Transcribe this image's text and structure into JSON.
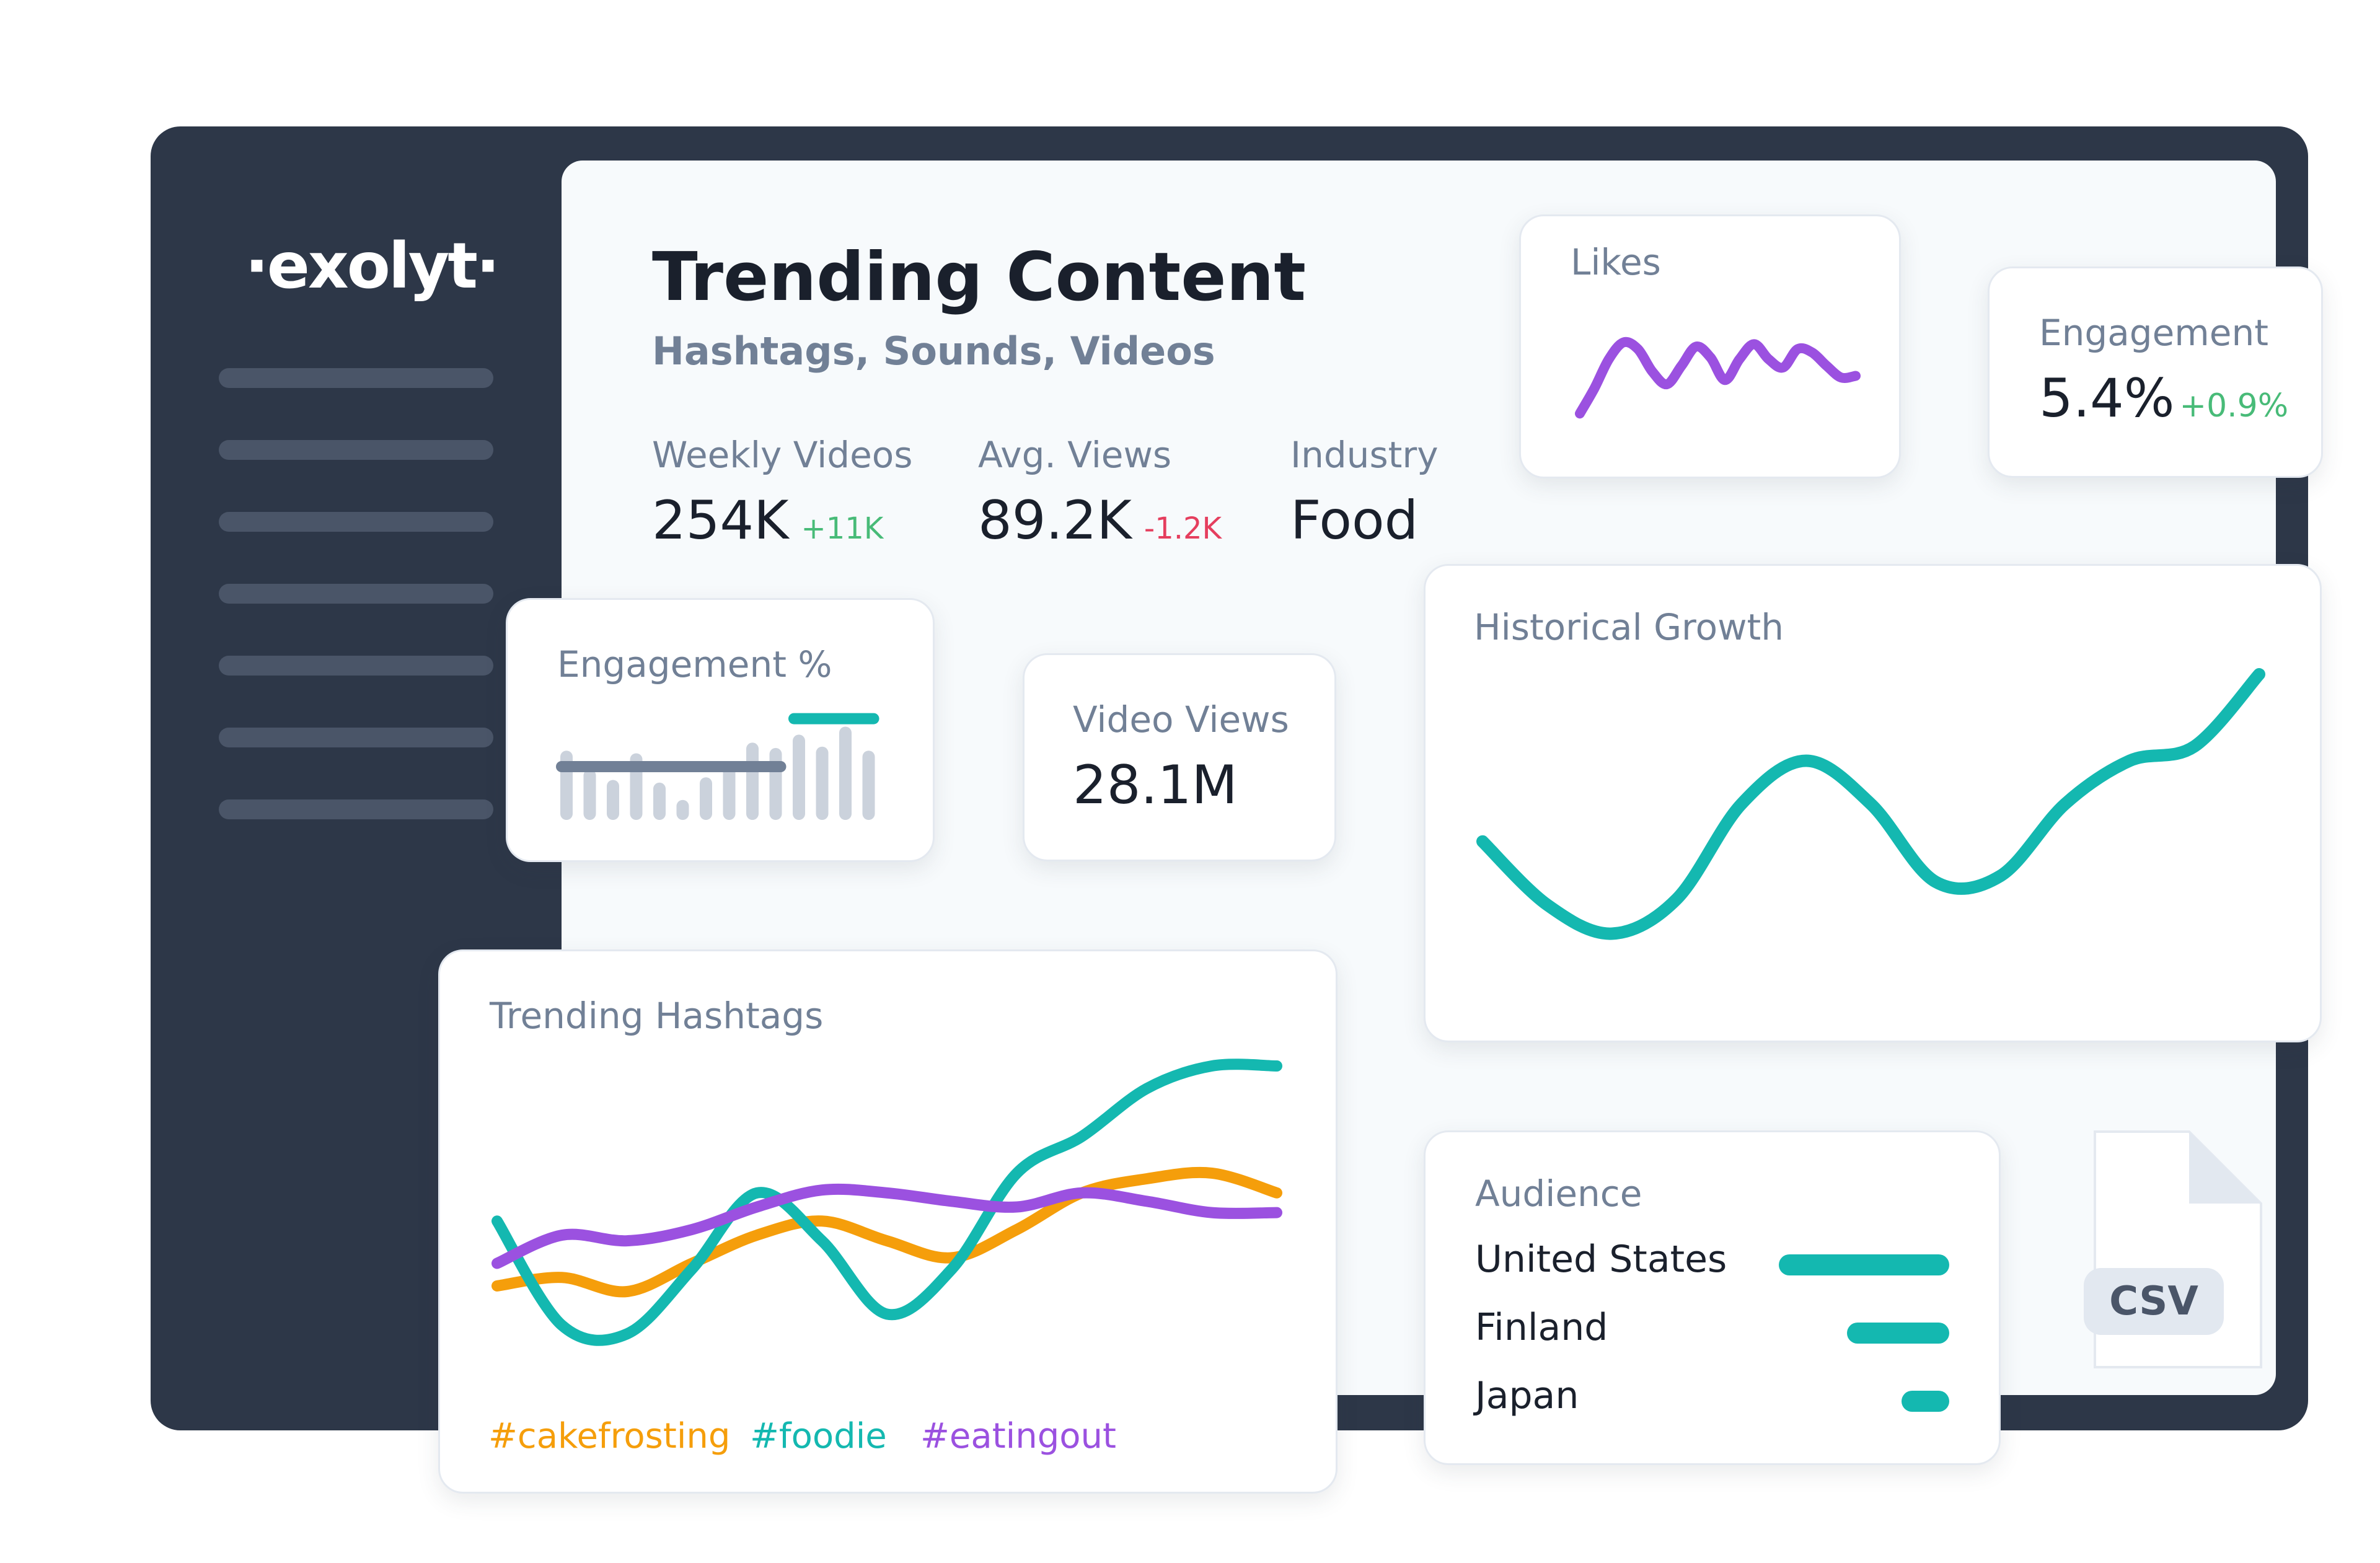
{
  "app": {
    "logo_text": "·exolyt·"
  },
  "sidebar": {
    "placeholder_item_count": 7
  },
  "header": {
    "title": "Trending Content",
    "subtitle": "Hashtags, Sounds, Videos"
  },
  "stats": [
    {
      "label": "Weekly Videos",
      "value": "254K",
      "delta": "+11K",
      "trend": "up"
    },
    {
      "label": "Avg. Views",
      "value": "89.2K",
      "delta": "-1.2K",
      "trend": "down"
    },
    {
      "label": "Industry",
      "value": "Food"
    }
  ],
  "likes_card": {
    "title": "Likes"
  },
  "engagement_card": {
    "title": "Engagement",
    "value": "5.4%",
    "delta": "+0.9%"
  },
  "engagement_pct_card": {
    "title": "Engagement %"
  },
  "video_views_card": {
    "title": "Video Views",
    "value": "28.1M"
  },
  "historical_card": {
    "title": "Historical Growth"
  },
  "hashtags_card": {
    "title": "Trending Hashtags",
    "legend": [
      {
        "label": "#cakefrosting",
        "color": "#f59e0b"
      },
      {
        "label": "#foodie",
        "color": "#14b8b0"
      },
      {
        "label": "#eatingout",
        "color": "#9b51e0"
      }
    ]
  },
  "audience_card": {
    "title": "Audience",
    "rows": [
      {
        "label": "United States",
        "share": 1.0
      },
      {
        "label": "Finland",
        "share": 0.6
      },
      {
        "label": "Japan",
        "share": 0.28
      }
    ]
  },
  "csv_file": {
    "label": "CSV"
  },
  "colors": {
    "frame": "#2d3748",
    "teal": "#14b8b0",
    "purple": "#9b51e0",
    "orange": "#f59e0b",
    "positive": "#48bb78",
    "negative": "#e53e5e"
  },
  "chart_data": [
    {
      "id": "likes-sparkline",
      "type": "line",
      "x": [
        0,
        1,
        2,
        3,
        4,
        5,
        6,
        7,
        8,
        9,
        10,
        11,
        12,
        13,
        14,
        15,
        16,
        17,
        18,
        19
      ],
      "series": [
        {
          "values": [
            0.05,
            0.35,
            0.7,
            0.9,
            0.82,
            0.55,
            0.4,
            0.62,
            0.85,
            0.72,
            0.45,
            0.7,
            0.88,
            0.7,
            0.6,
            0.82,
            0.78,
            0.62,
            0.48,
            0.5
          ]
        }
      ],
      "xlabel": "",
      "ylabel": "",
      "grid": false
    },
    {
      "id": "engagement-bars",
      "type": "bar",
      "values": [
        0.52,
        0.38,
        0.3,
        0.5,
        0.28,
        0.15,
        0.32,
        0.4,
        0.58,
        0.54,
        0.64,
        0.55,
        0.7,
        0.52
      ],
      "highlighted_from": 10,
      "overlays": [
        {
          "from": 0,
          "to": 9,
          "level": 0.4,
          "color": "#718096"
        },
        {
          "from": 10,
          "to": 13,
          "level": 0.76,
          "color": "#14b8b0"
        }
      ],
      "grid": false
    },
    {
      "id": "historical-growth",
      "type": "line",
      "x": [
        0,
        1,
        2,
        3,
        4,
        5,
        6,
        7,
        8,
        9,
        10,
        11,
        12
      ],
      "series": [
        {
          "values": [
            0.42,
            0.2,
            0.1,
            0.22,
            0.55,
            0.7,
            0.55,
            0.28,
            0.3,
            0.55,
            0.7,
            0.75,
            1.0
          ],
          "color": "#14b8b0"
        }
      ],
      "xlabel": "",
      "ylabel": "",
      "grid": false
    },
    {
      "id": "trending-hashtags",
      "type": "line",
      "x": [
        0,
        1,
        2,
        3,
        4,
        5,
        6,
        7,
        8,
        9,
        10,
        11,
        12
      ],
      "series": [
        {
          "name": "#cakefrosting",
          "color": "#f59e0b",
          "values": [
            0.22,
            0.25,
            0.2,
            0.3,
            0.4,
            0.45,
            0.38,
            0.32,
            0.42,
            0.55,
            0.6,
            0.62,
            0.55
          ]
        },
        {
          "name": "#foodie",
          "color": "#14b8b0",
          "values": [
            0.45,
            0.08,
            0.05,
            0.28,
            0.55,
            0.38,
            0.12,
            0.28,
            0.62,
            0.75,
            0.92,
            1.0,
            1.0
          ]
        },
        {
          "name": "#eatingout",
          "color": "#9b51e0",
          "values": [
            0.3,
            0.4,
            0.38,
            0.42,
            0.5,
            0.56,
            0.55,
            0.52,
            0.5,
            0.55,
            0.52,
            0.48,
            0.48
          ]
        }
      ],
      "legend": "bottom",
      "xlabel": "",
      "ylabel": "",
      "grid": false
    }
  ]
}
